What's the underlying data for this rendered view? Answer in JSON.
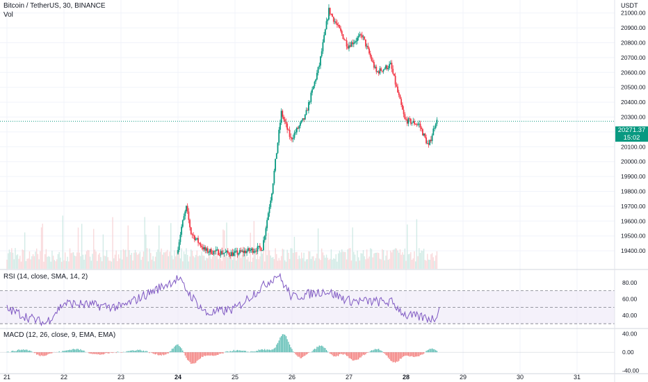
{
  "header": {
    "symbol": "Bitcoin / TetherUS, 30, BINANCE",
    "volume_label": "Vol",
    "currency": "USDT"
  },
  "price_label": {
    "value": "20271.37",
    "countdown": "15:02"
  },
  "colors": {
    "up": "#089981",
    "down": "#f23645",
    "rsi_line": "#7e57c2",
    "rsi_band": "#ede7f6",
    "macd_up": "#26a69a",
    "macd_down": "#ef5350",
    "last_price_line": "#089981",
    "grid": "#f0f3fa"
  },
  "chart_data": [
    {
      "type": "candlestick",
      "title": "Bitcoin / TetherUS, 30, BINANCE",
      "ylim": [
        19350,
        21100
      ],
      "yticks": [
        "21000.00",
        "20900.00",
        "20800.00",
        "20700.00",
        "20600.00",
        "20500.00",
        "20400.00",
        "20300.00",
        "20200.00",
        "20100.00",
        "20000.00",
        "19900.00",
        "19800.00",
        "19700.00",
        "19600.00",
        "19500.00",
        "19400.00"
      ],
      "x_ticks": [
        "21",
        "22",
        "23",
        "24",
        "25",
        "26",
        "27",
        "28",
        "29",
        "30",
        "31"
      ],
      "last_price": 20271.37,
      "key_points": [
        {
          "t": "24 00:00",
          "price": 19380
        },
        {
          "t": "24 02:00",
          "price": 19560
        },
        {
          "t": "24 04:00",
          "price": 19690
        },
        {
          "t": "24 06:00",
          "price": 19520
        },
        {
          "t": "24 12:00",
          "price": 19400
        },
        {
          "t": "25 00:00",
          "price": 19380
        },
        {
          "t": "25 12:00",
          "price": 19420
        },
        {
          "t": "25 16:00",
          "price": 19800
        },
        {
          "t": "25 20:00",
          "price": 20330
        },
        {
          "t": "26 00:00",
          "price": 20150
        },
        {
          "t": "26 06:00",
          "price": 20300
        },
        {
          "t": "26 12:00",
          "price": 20650
        },
        {
          "t": "26 16:00",
          "price": 21020
        },
        {
          "t": "27 00:00",
          "price": 20780
        },
        {
          "t": "27 06:00",
          "price": 20850
        },
        {
          "t": "27 12:00",
          "price": 20600
        },
        {
          "t": "27 18:00",
          "price": 20650
        },
        {
          "t": "28 00:00",
          "price": 20280
        },
        {
          "t": "28 06:00",
          "price": 20250
        },
        {
          "t": "28 10:00",
          "price": 20100
        },
        {
          "t": "28 13:00",
          "price": 20271
        }
      ]
    },
    {
      "type": "bar",
      "title": "Vol",
      "description": "volume histogram overlaid at bottom of price pane"
    },
    {
      "type": "line",
      "title": "RSI (14, close, SMA, 14, 2)",
      "ylim": [
        25,
        95
      ],
      "yticks": [
        "80.00",
        "60.00",
        "40.00"
      ],
      "bands": [
        30,
        50,
        70
      ],
      "key_points": [
        {
          "t": "21",
          "value": 48
        },
        {
          "t": "21 16:00",
          "value": 30
        },
        {
          "t": "22",
          "value": 55
        },
        {
          "t": "23",
          "value": 50
        },
        {
          "t": "24",
          "value": 85
        },
        {
          "t": "24 06:00",
          "value": 62
        },
        {
          "t": "24 12:00",
          "value": 42
        },
        {
          "t": "25",
          "value": 48
        },
        {
          "t": "25 18:00",
          "value": 90
        },
        {
          "t": "26",
          "value": 62
        },
        {
          "t": "26 14:00",
          "value": 70
        },
        {
          "t": "27",
          "value": 58
        },
        {
          "t": "27 18:00",
          "value": 56
        },
        {
          "t": "28",
          "value": 40
        },
        {
          "t": "28 12:00",
          "value": 36
        },
        {
          "t": "28 14:00",
          "value": 50
        }
      ]
    },
    {
      "type": "bar",
      "title": "MACD (12, 26, close, 9, EMA, EMA)",
      "ylim": [
        -45,
        50
      ],
      "yticks": [
        "40.00",
        "0.00",
        "-40.00"
      ],
      "description": "MACD histogram; large positive peaks around 24 and 25 20:00, negative bars around 24 06:00 and 27 12:00-28"
    }
  ]
}
